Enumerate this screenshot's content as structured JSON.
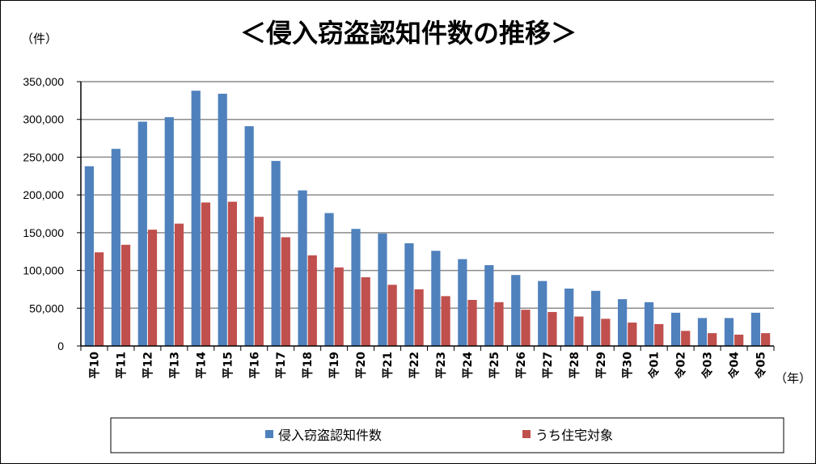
{
  "chart_data": {
    "type": "bar",
    "title": "＜侵入窃盗認知件数の推移＞",
    "y_unit": "（件）",
    "x_unit": "（年）",
    "ylim": [
      0,
      350000
    ],
    "yticks": [
      "0",
      "50,000",
      "100,000",
      "150,000",
      "200,000",
      "250,000",
      "300,000",
      "350,000"
    ],
    "grid": true,
    "legend_position": "bottom",
    "categories": [
      "平10",
      "平11",
      "平12",
      "平13",
      "平14",
      "平15",
      "平16",
      "平17",
      "平18",
      "平19",
      "平20",
      "平21",
      "平22",
      "平23",
      "平24",
      "平25",
      "平26",
      "平27",
      "平28",
      "平29",
      "平30",
      "令01",
      "令02",
      "令03",
      "令04",
      "令05"
    ],
    "series": [
      {
        "name": "侵入窃盗認知件数",
        "color": "#4f81bd",
        "values": [
          238000,
          261000,
          297000,
          303000,
          338000,
          334000,
          291000,
          245000,
          206000,
          176000,
          155000,
          149000,
          136000,
          126000,
          115000,
          107000,
          94000,
          86000,
          76000,
          73000,
          62000,
          58000,
          44000,
          37000,
          37000,
          44000
        ]
      },
      {
        "name": "うち住宅対象",
        "color": "#c0504d",
        "values": [
          124000,
          134000,
          154000,
          162000,
          190000,
          191000,
          171000,
          144000,
          120000,
          104000,
          91000,
          81000,
          75000,
          66000,
          61000,
          58000,
          48000,
          45000,
          39000,
          36000,
          31000,
          29000,
          20000,
          17000,
          15000,
          17000
        ]
      }
    ]
  }
}
